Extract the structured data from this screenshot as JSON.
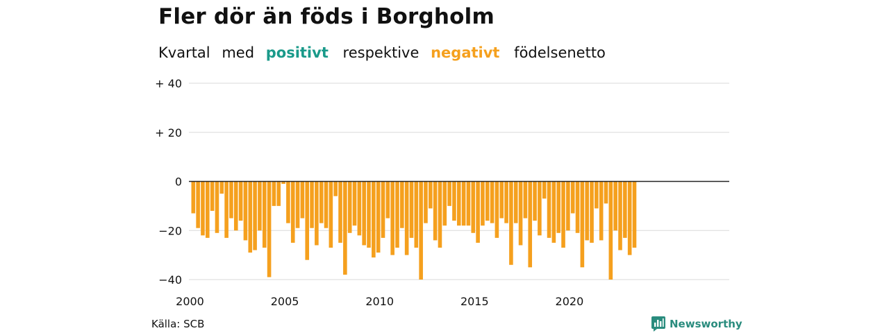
{
  "title": "Fler dör än föds i Borgholm",
  "subtitle": {
    "prefix": "Kvartal",
    "word_med": "med",
    "positive": "positivt",
    "middle": "respektive",
    "negative": "negativt",
    "suffix": "födelsenetto"
  },
  "colors": {
    "positive": "#1a9a8a",
    "negative": "#f5a01e",
    "grid": "#d9d9d9",
    "zero_line": "#222222",
    "brand": "#2a8c7e"
  },
  "source": "Källa: SCB",
  "brand": {
    "name": "Newsworthy",
    "icon": "bar-chart-logo-icon"
  },
  "chart_data": {
    "type": "bar",
    "title": "Fler dör än föds i Borgholm",
    "subtitle": "Kvartal med positivt respektive negativt födelsenetto",
    "xlabel": "",
    "ylabel": "",
    "ylim": [
      -40,
      40
    ],
    "yticks": [
      40,
      20,
      0,
      -20,
      -40
    ],
    "ytick_labels": [
      "+ 40",
      "+ 20",
      "0",
      "−20",
      "−40"
    ],
    "xticks": [
      2000,
      2005,
      2010,
      2015,
      2020
    ],
    "xtick_labels": [
      "2000",
      "2005",
      "2010",
      "2015",
      "2020"
    ],
    "x_start": 2000,
    "periods_per_year": 4,
    "grid": true,
    "values": [
      -13,
      -19,
      -22,
      -23,
      -12,
      -21,
      -5,
      -23,
      -15,
      -20,
      -16,
      -24,
      -29,
      -28,
      -20,
      -27,
      -39,
      -10,
      -10,
      -1,
      -17,
      -25,
      -19,
      -15,
      -32,
      -19,
      -26,
      -17,
      -19,
      -27,
      -6,
      -25,
      -38,
      -21,
      -18,
      -22,
      -26,
      -27,
      -31,
      -29,
      -23,
      -15,
      -30,
      -27,
      -19,
      -30,
      -23,
      -27,
      -40,
      -17,
      -11,
      -24,
      -27,
      -18,
      -10,
      -16,
      -18,
      -18,
      -18,
      -21,
      -25,
      -18,
      -16,
      -17,
      -23,
      -15,
      -17,
      -34,
      -17,
      -26,
      -15,
      -35,
      -16,
      -22,
      -7,
      -23,
      -25,
      -21,
      -27,
      -20,
      -13,
      -21,
      -35,
      -24,
      -25,
      -11,
      -24,
      -9,
      -40,
      -20,
      -28,
      -23,
      -30,
      -27
    ]
  }
}
